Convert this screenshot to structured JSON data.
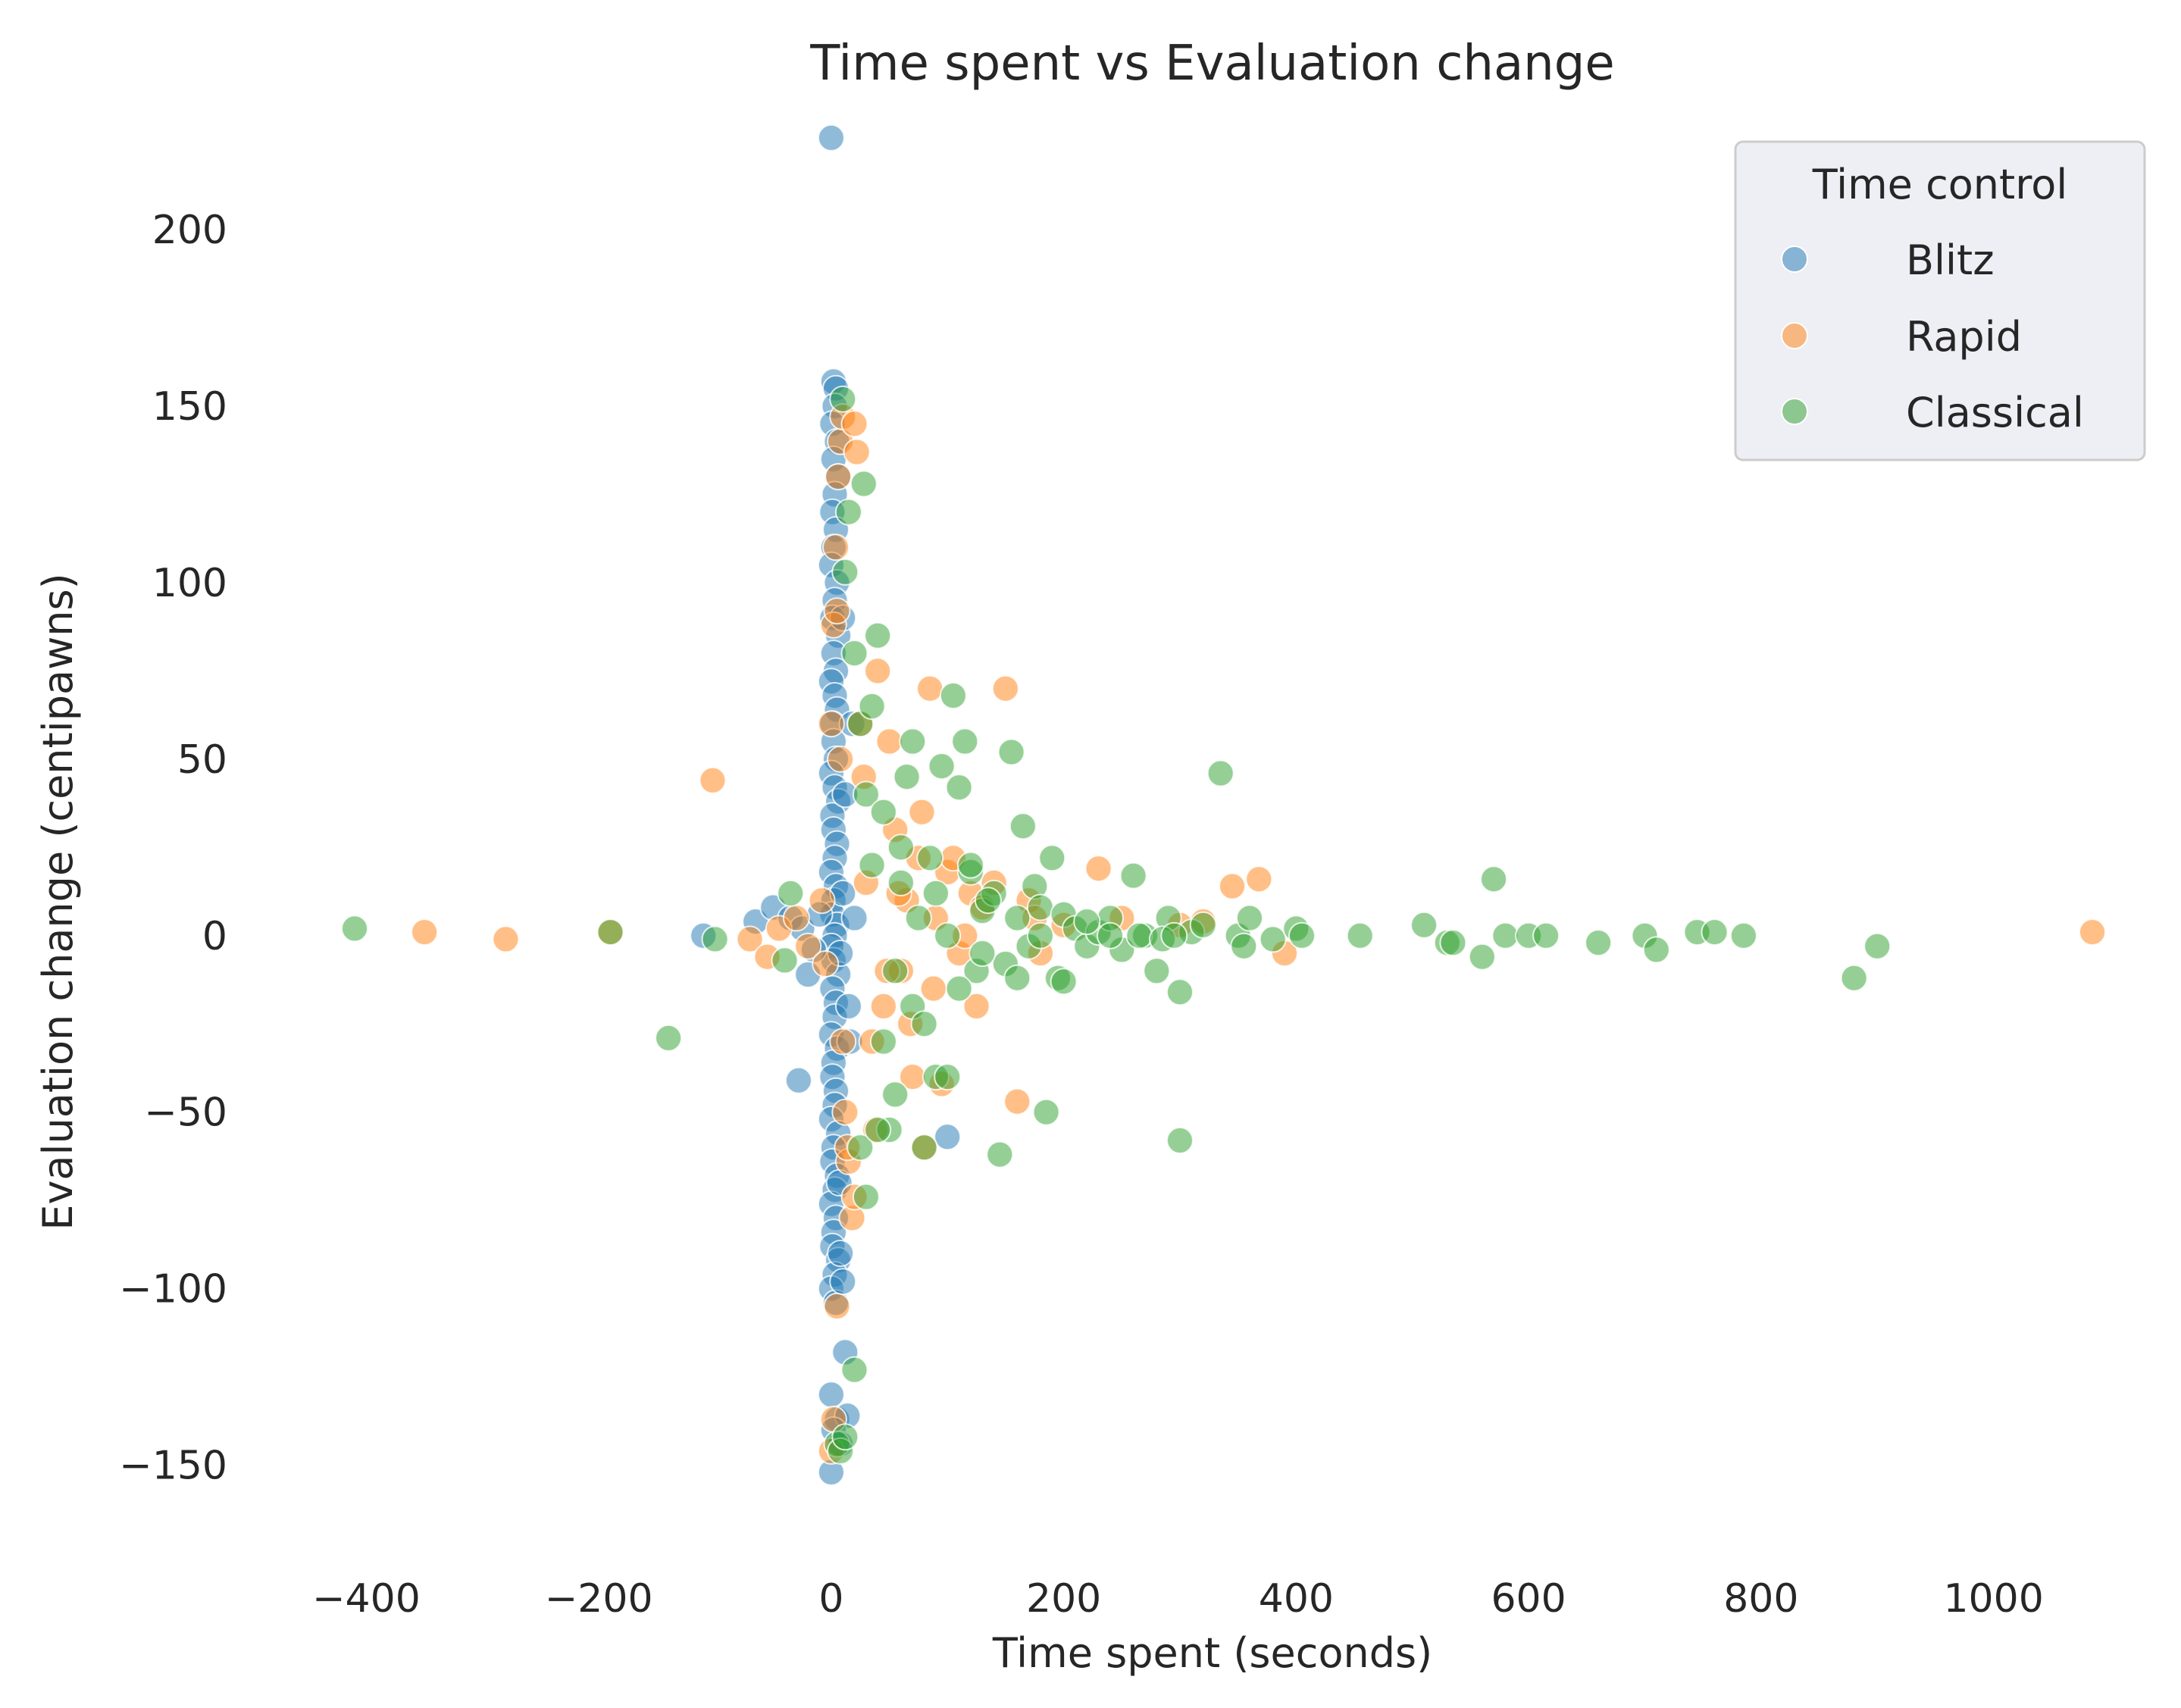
{
  "chart_data": {
    "type": "scatter",
    "title": "Time spent vs Evaluation change",
    "xlabel": "Time spent (seconds)",
    "ylabel": "Evaluation change (centipawns)",
    "xlim": [
      -500,
      1130
    ],
    "ylim": [
      -175,
      235
    ],
    "xticks": [
      -400,
      -200,
      0,
      200,
      400,
      600,
      800,
      1000
    ],
    "yticks": [
      -150,
      -100,
      -50,
      0,
      50,
      100,
      150,
      200
    ],
    "xtick_labels": [
      "−400",
      "−200",
      "0",
      "200",
      "400",
      "600",
      "800",
      "1000"
    ],
    "ytick_labels": [
      "−150",
      "−100",
      "−50",
      "0",
      "50",
      "100",
      "150",
      "200"
    ],
    "grid": true,
    "legend": {
      "title": "Time control",
      "placement": "top-right"
    },
    "series": [
      {
        "name": "Blitz",
        "color": "#1f77b4",
        "points": [
          [
            0,
            226
          ],
          [
            2,
            157
          ],
          [
            4,
            155
          ],
          [
            3,
            150
          ],
          [
            1,
            145
          ],
          [
            5,
            140
          ],
          [
            2,
            135
          ],
          [
            6,
            130
          ],
          [
            3,
            125
          ],
          [
            1,
            120
          ],
          [
            4,
            115
          ],
          [
            2,
            110
          ],
          [
            0,
            105
          ],
          [
            5,
            100
          ],
          [
            3,
            95
          ],
          [
            1,
            90
          ],
          [
            6,
            85
          ],
          [
            2,
            80
          ],
          [
            4,
            75
          ],
          [
            0,
            72
          ],
          [
            3,
            68
          ],
          [
            5,
            64
          ],
          [
            1,
            60
          ],
          [
            2,
            55
          ],
          [
            4,
            50
          ],
          [
            0,
            46
          ],
          [
            3,
            42
          ],
          [
            6,
            38
          ],
          [
            1,
            34
          ],
          [
            2,
            30
          ],
          [
            5,
            26
          ],
          [
            3,
            22
          ],
          [
            0,
            18
          ],
          [
            4,
            14
          ],
          [
            2,
            10
          ],
          [
            1,
            6
          ],
          [
            5,
            3
          ],
          [
            3,
            0
          ],
          [
            0,
            -3
          ],
          [
            2,
            -7
          ],
          [
            6,
            -11
          ],
          [
            1,
            -15
          ],
          [
            4,
            -19
          ],
          [
            3,
            -23
          ],
          [
            0,
            -28
          ],
          [
            5,
            -32
          ],
          [
            2,
            -36
          ],
          [
            1,
            -40
          ],
          [
            4,
            -44
          ],
          [
            3,
            -48
          ],
          [
            0,
            -52
          ],
          [
            6,
            -56
          ],
          [
            2,
            -60
          ],
          [
            1,
            -64
          ],
          [
            5,
            -68
          ],
          [
            3,
            -72
          ],
          [
            0,
            -76
          ],
          [
            4,
            -80
          ],
          [
            2,
            -84
          ],
          [
            1,
            -88
          ],
          [
            6,
            -92
          ],
          [
            3,
            -96
          ],
          [
            0,
            -100
          ],
          [
            4,
            -104
          ],
          [
            10,
            -98
          ],
          [
            8,
            -90
          ],
          [
            12,
            -118
          ],
          [
            0,
            -130
          ],
          [
            5,
            -137
          ],
          [
            14,
            -136
          ],
          [
            2,
            -140
          ],
          [
            8,
            -144
          ],
          [
            0,
            -152
          ],
          [
            -110,
            0
          ],
          [
            -65,
            4
          ],
          [
            -50,
            8
          ],
          [
            -35,
            5
          ],
          [
            -25,
            2
          ],
          [
            -15,
            -4
          ],
          [
            -10,
            6
          ],
          [
            -20,
            -11
          ],
          [
            -28,
            -41
          ],
          [
            100,
            -57
          ],
          [
            15,
            -20
          ],
          [
            20,
            5
          ],
          [
            10,
            12
          ],
          [
            8,
            -5
          ],
          [
            12,
            40
          ],
          [
            16,
            -30
          ],
          [
            18,
            60
          ],
          [
            10,
            90
          ],
          [
            7,
            -70
          ]
        ]
      },
      {
        "name": "Rapid",
        "color": "#ff7f0e",
        "points": [
          [
            -350,
            1
          ],
          [
            -280,
            -1
          ],
          [
            -190,
            1
          ],
          [
            -102,
            44
          ],
          [
            -70,
            -1
          ],
          [
            -55,
            -6
          ],
          [
            -45,
            2
          ],
          [
            -30,
            5
          ],
          [
            -20,
            -3
          ],
          [
            -8,
            10
          ],
          [
            -5,
            -8
          ],
          [
            0,
            60
          ],
          [
            2,
            88
          ],
          [
            4,
            110
          ],
          [
            6,
            130
          ],
          [
            8,
            140
          ],
          [
            10,
            147
          ],
          [
            20,
            145
          ],
          [
            22,
            137
          ],
          [
            5,
            92
          ],
          [
            8,
            50
          ],
          [
            10,
            -30
          ],
          [
            12,
            -50
          ],
          [
            15,
            -64
          ],
          [
            18,
            -80
          ],
          [
            20,
            -74
          ],
          [
            5,
            -105
          ],
          [
            0,
            -146
          ],
          [
            2,
            -137
          ],
          [
            14,
            -60
          ],
          [
            25,
            60
          ],
          [
            30,
            15
          ],
          [
            35,
            -30
          ],
          [
            40,
            75
          ],
          [
            45,
            -20
          ],
          [
            50,
            55
          ],
          [
            55,
            30
          ],
          [
            60,
            -10
          ],
          [
            65,
            10
          ],
          [
            70,
            -40
          ],
          [
            75,
            22
          ],
          [
            80,
            -60
          ],
          [
            85,
            70
          ],
          [
            90,
            5
          ],
          [
            95,
            -42
          ],
          [
            100,
            18
          ],
          [
            110,
            -5
          ],
          [
            120,
            12
          ],
          [
            125,
            -20
          ],
          [
            130,
            8
          ],
          [
            150,
            70
          ],
          [
            160,
            -47
          ],
          [
            170,
            10
          ],
          [
            180,
            -5
          ],
          [
            200,
            3
          ],
          [
            230,
            19
          ],
          [
            250,
            5
          ],
          [
            300,
            3
          ],
          [
            320,
            4
          ],
          [
            345,
            14
          ],
          [
            368,
            16
          ],
          [
            390,
            -5
          ],
          [
            1085,
            1
          ],
          [
            28,
            45
          ],
          [
            38,
            -55
          ],
          [
            48,
            -10
          ],
          [
            58,
            12
          ],
          [
            68,
            -25
          ],
          [
            78,
            35
          ],
          [
            88,
            -15
          ],
          [
            105,
            22
          ],
          [
            115,
            0
          ],
          [
            140,
            15
          ],
          [
            175,
            5
          ]
        ]
      },
      {
        "name": "Classical",
        "color": "#2ca02c",
        "points": [
          [
            -410,
            2
          ],
          [
            -190,
            1
          ],
          [
            -140,
            -29
          ],
          [
            -100,
            -1
          ],
          [
            -40,
            -7
          ],
          [
            -35,
            12
          ],
          [
            10,
            152
          ],
          [
            28,
            128
          ],
          [
            12,
            103
          ],
          [
            15,
            120
          ],
          [
            20,
            80
          ],
          [
            25,
            60
          ],
          [
            30,
            40
          ],
          [
            35,
            20
          ],
          [
            40,
            85
          ],
          [
            45,
            -30
          ],
          [
            50,
            -55
          ],
          [
            55,
            -10
          ],
          [
            60,
            15
          ],
          [
            65,
            45
          ],
          [
            70,
            -20
          ],
          [
            75,
            5
          ],
          [
            80,
            -60
          ],
          [
            85,
            22
          ],
          [
            90,
            -40
          ],
          [
            95,
            48
          ],
          [
            100,
            -40
          ],
          [
            105,
            68
          ],
          [
            110,
            42
          ],
          [
            115,
            55
          ],
          [
            120,
            18
          ],
          [
            125,
            -10
          ],
          [
            130,
            7
          ],
          [
            140,
            12
          ],
          [
            145,
            -62
          ],
          [
            150,
            -8
          ],
          [
            155,
            52
          ],
          [
            160,
            5
          ],
          [
            165,
            31
          ],
          [
            170,
            -3
          ],
          [
            175,
            14
          ],
          [
            180,
            8
          ],
          [
            185,
            -50
          ],
          [
            190,
            22
          ],
          [
            195,
            -12
          ],
          [
            200,
            6
          ],
          [
            210,
            2
          ],
          [
            220,
            -3
          ],
          [
            230,
            1
          ],
          [
            240,
            5
          ],
          [
            250,
            -4
          ],
          [
            260,
            17
          ],
          [
            270,
            0
          ],
          [
            280,
            -10
          ],
          [
            290,
            5
          ],
          [
            300,
            -16
          ],
          [
            300,
            -58
          ],
          [
            310,
            1
          ],
          [
            320,
            3
          ],
          [
            335,
            46
          ],
          [
            350,
            0
          ],
          [
            355,
            -3
          ],
          [
            360,
            5
          ],
          [
            380,
            -1
          ],
          [
            400,
            2
          ],
          [
            405,
            0
          ],
          [
            455,
            0
          ],
          [
            510,
            3
          ],
          [
            530,
            -2
          ],
          [
            535,
            -2
          ],
          [
            560,
            -6
          ],
          [
            570,
            16
          ],
          [
            580,
            0
          ],
          [
            600,
            0
          ],
          [
            615,
            0
          ],
          [
            660,
            -2
          ],
          [
            700,
            0
          ],
          [
            710,
            -4
          ],
          [
            745,
            1
          ],
          [
            760,
            1
          ],
          [
            785,
            0
          ],
          [
            880,
            -12
          ],
          [
            900,
            -3
          ],
          [
            20,
            -123
          ],
          [
            5,
            -144
          ],
          [
            8,
            -146
          ],
          [
            12,
            -142
          ],
          [
            25,
            -60
          ],
          [
            30,
            -74
          ],
          [
            40,
            -55
          ],
          [
            35,
            65
          ],
          [
            45,
            35
          ],
          [
            55,
            -45
          ],
          [
            60,
            25
          ],
          [
            70,
            55
          ],
          [
            80,
            -25
          ],
          [
            90,
            12
          ],
          [
            100,
            0
          ],
          [
            110,
            -15
          ],
          [
            120,
            20
          ],
          [
            130,
            -5
          ],
          [
            135,
            10
          ],
          [
            160,
            -12
          ],
          [
            180,
            0
          ],
          [
            200,
            -13
          ],
          [
            220,
            4
          ],
          [
            240,
            0
          ],
          [
            265,
            0
          ],
          [
            285,
            -1
          ],
          [
            295,
            0
          ]
        ]
      }
    ]
  }
}
